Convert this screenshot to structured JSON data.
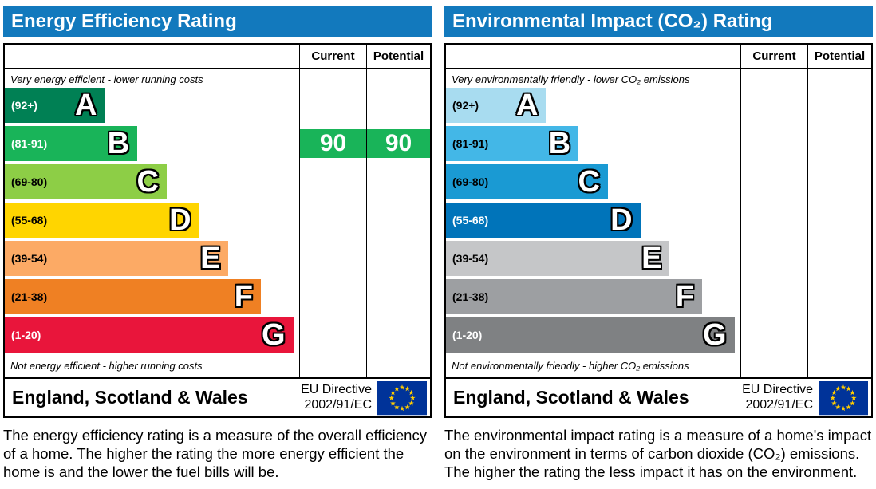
{
  "chart_data": [
    {
      "type": "bar",
      "title": "Energy Efficiency Rating",
      "categories": [
        "A (92+)",
        "B (81-91)",
        "C (69-80)",
        "D (55-68)",
        "E (39-54)",
        "F (21-38)",
        "G (1-20)"
      ],
      "band_colors": [
        "#008054",
        "#19b459",
        "#8dce46",
        "#ffd500",
        "#fcaa65",
        "#ef8023",
        "#e9153b"
      ],
      "band_lengths_pct": [
        34,
        45,
        55,
        66,
        76,
        87,
        98
      ],
      "series": [
        {
          "name": "Current",
          "values": [
            90
          ]
        },
        {
          "name": "Potential",
          "values": [
            90
          ]
        }
      ],
      "annotations": [
        "Very energy efficient - lower running costs",
        "Not energy efficient - higher running costs"
      ],
      "xlabel": "",
      "ylabel": "",
      "legend_position": "top-right-columns",
      "grid": false
    },
    {
      "type": "bar",
      "title": "Environmental Impact (CO₂) Rating",
      "categories": [
        "A (92+)",
        "B (81-91)",
        "C (69-80)",
        "D (55-68)",
        "E (39-54)",
        "F (21-38)",
        "G (1-20)"
      ],
      "band_colors": [
        "#a8dcf0",
        "#43b7e7",
        "#1a9ad3",
        "#0074ba",
        "#c5c6c8",
        "#9d9fa2",
        "#7f8183"
      ],
      "band_lengths_pct": [
        34,
        45,
        55,
        66,
        76,
        87,
        98
      ],
      "series": [
        {
          "name": "Current",
          "values": []
        },
        {
          "name": "Potential",
          "values": []
        }
      ],
      "annotations": [
        "Very environmentally friendly - lower CO₂ emissions",
        "Not environmentally friendly - higher CO₂ emissions"
      ],
      "xlabel": "",
      "ylabel": "",
      "legend_position": "top-right-columns",
      "grid": false
    }
  ],
  "panels": [
    {
      "title": "Energy Efficiency Rating",
      "header_color": "#1279bd",
      "columns": {
        "current": "Current",
        "potential": "Potential"
      },
      "caption_top": "Very energy efficient - lower running costs",
      "caption_bottom": "Not energy efficient - higher running costs",
      "bands": [
        {
          "range": "(92+)",
          "letter": "A",
          "color": "#008054",
          "width": "34%",
          "range_color": "#ffffff"
        },
        {
          "range": "(81-91)",
          "letter": "B",
          "color": "#19b459",
          "width": "45%",
          "range_color": "#ffffff"
        },
        {
          "range": "(69-80)",
          "letter": "C",
          "color": "#8dce46",
          "width": "55%",
          "range_color": "#000000"
        },
        {
          "range": "(55-68)",
          "letter": "D",
          "color": "#ffd500",
          "width": "66%",
          "range_color": "#000000"
        },
        {
          "range": "(39-54)",
          "letter": "E",
          "color": "#fcaa65",
          "width": "76%",
          "range_color": "#000000"
        },
        {
          "range": "(21-38)",
          "letter": "F",
          "color": "#ef8023",
          "width": "87%",
          "range_color": "#000000"
        },
        {
          "range": "(1-20)",
          "letter": "G",
          "color": "#e9153b",
          "width": "98%",
          "range_color": "#ffffff"
        }
      ],
      "current": {
        "value": "90",
        "color": "#19b459",
        "band_index": 1
      },
      "potential": {
        "value": "90",
        "color": "#19b459",
        "band_index": 1
      },
      "footer": {
        "region": "England, Scotland & Wales",
        "directive_line1": "EU Directive",
        "directive_line2": "2002/91/EC"
      },
      "description": "The energy efficiency rating is a measure of the overall efficiency of a home. The higher the rating the more energy efficient the home is and the lower the fuel bills will be."
    },
    {
      "title": "Environmental Impact (CO₂) Rating",
      "header_color": "#1279bd",
      "columns": {
        "current": "Current",
        "potential": "Potential"
      },
      "caption_top": "Very environmentally friendly - lower CO₂ emissions",
      "caption_bottom": "Not environmentally friendly - higher CO₂ emissions",
      "bands": [
        {
          "range": "(92+)",
          "letter": "A",
          "color": "#a8dcf0",
          "width": "34%",
          "range_color": "#000000"
        },
        {
          "range": "(81-91)",
          "letter": "B",
          "color": "#43b7e7",
          "width": "45%",
          "range_color": "#000000"
        },
        {
          "range": "(69-80)",
          "letter": "C",
          "color": "#1a9ad3",
          "width": "55%",
          "range_color": "#000000"
        },
        {
          "range": "(55-68)",
          "letter": "D",
          "color": "#0074ba",
          "width": "66%",
          "range_color": "#ffffff"
        },
        {
          "range": "(39-54)",
          "letter": "E",
          "color": "#c5c6c8",
          "width": "76%",
          "range_color": "#000000"
        },
        {
          "range": "(21-38)",
          "letter": "F",
          "color": "#9d9fa2",
          "width": "87%",
          "range_color": "#000000"
        },
        {
          "range": "(1-20)",
          "letter": "G",
          "color": "#7f8183",
          "width": "98%",
          "range_color": "#ffffff"
        }
      ],
      "current": null,
      "potential": null,
      "footer": {
        "region": "England, Scotland & Wales",
        "directive_line1": "EU Directive",
        "directive_line2": "2002/91/EC"
      },
      "description": "The environmental impact rating is a measure of a home's impact on the environment in terms of carbon dioxide (CO₂) emissions. The higher the rating the less impact it has on the environment."
    }
  ],
  "flag_colors": {
    "field": "#003399",
    "stars": "#ffcc00"
  }
}
